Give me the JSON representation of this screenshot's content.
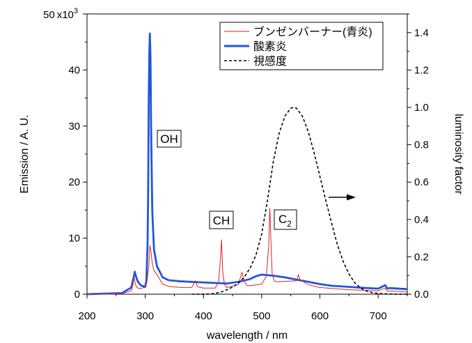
{
  "chart_data": {
    "type": "line",
    "xlabel": "wavelength / nm",
    "ylabel_left": "Emission / A. U.",
    "ylabel_right": "luminosity factor",
    "x_range": [
      200,
      750
    ],
    "y_left_range": [
      0,
      50000
    ],
    "y_right_range": [
      0,
      1.5
    ],
    "x_ticks": [
      200,
      300,
      400,
      500,
      600,
      700
    ],
    "y_left_ticks": [
      0,
      10,
      20,
      30,
      40,
      50
    ],
    "y_left_tick_labels": [
      "0",
      "10",
      "20",
      "30",
      "40",
      "50"
    ],
    "y_left_multiplier": "x10",
    "y_left_multiplier_exp": "3",
    "y_right_ticks": [
      "0.0",
      "0.2",
      "0.4",
      "0.6",
      "0.8",
      "1.0",
      "1.2",
      "1.4"
    ],
    "legend_position": "top-right",
    "series": [
      {
        "name": "ブンゼンバーナー(青炎)",
        "axis": "left",
        "style": "thin-solid",
        "color": "#dd2222",
        "x": [
          200,
          260,
          276,
          279,
          281,
          283,
          286,
          290,
          295,
          300,
          303,
          306,
          308,
          310,
          312,
          315,
          320,
          330,
          340,
          360,
          380,
          386,
          390,
          400,
          420,
          426,
          429,
          431,
          433,
          436,
          440,
          460,
          466,
          470,
          474,
          480,
          500,
          508,
          512,
          514,
          516,
          518,
          522,
          528,
          540,
          560,
          563,
          566,
          570,
          580,
          600,
          650,
          700,
          712,
          716,
          720,
          750
        ],
        "y": [
          0,
          100,
          600,
          1800,
          3100,
          1700,
          1200,
          1000,
          1100,
          1300,
          2200,
          5000,
          8700,
          7500,
          5500,
          4200,
          3500,
          1800,
          1400,
          1200,
          1200,
          2400,
          1300,
          1100,
          1100,
          2200,
          6000,
          9700,
          4000,
          1800,
          1200,
          1700,
          3900,
          2300,
          1600,
          1500,
          1800,
          3200,
          8500,
          15300,
          9000,
          3500,
          2300,
          2200,
          2300,
          2400,
          3500,
          2500,
          2300,
          1700,
          1200,
          800,
          600,
          1100,
          500,
          600,
          400
        ]
      },
      {
        "name": "酸素炎",
        "axis": "left",
        "style": "thick-solid",
        "color": "#2255dd",
        "x": [
          200,
          260,
          276,
          280,
          282,
          284,
          287,
          292,
          300,
          302,
          304,
          305,
          306,
          307,
          308,
          309,
          310,
          312,
          315,
          320,
          330,
          340,
          360,
          380,
          400,
          420,
          440,
          460,
          480,
          490,
          500,
          520,
          540,
          560,
          580,
          600,
          620,
          650,
          680,
          700,
          712,
          716,
          720,
          750
        ],
        "y": [
          0,
          200,
          1200,
          3000,
          4000,
          3200,
          2300,
          1600,
          1300,
          2500,
          9000,
          18000,
          35000,
          43000,
          46500,
          42000,
          30000,
          15000,
          8000,
          5000,
          3000,
          2500,
          2300,
          2200,
          2100,
          2000,
          1900,
          2200,
          2700,
          3200,
          3500,
          3300,
          3000,
          2600,
          2200,
          1800,
          1500,
          1300,
          1100,
          1000,
          1600,
          1000,
          1100,
          900
        ]
      },
      {
        "name": "視感度",
        "axis": "right",
        "style": "dashed",
        "color": "#000000",
        "x": [
          380,
          390,
          400,
          410,
          420,
          430,
          440,
          450,
          460,
          470,
          480,
          490,
          500,
          510,
          520,
          530,
          540,
          550,
          555,
          560,
          570,
          580,
          590,
          600,
          610,
          620,
          630,
          640,
          650,
          660,
          670,
          680,
          690,
          700,
          710,
          720,
          730,
          740,
          750
        ],
        "y": [
          0.0,
          0.0001,
          0.0004,
          0.0012,
          0.004,
          0.0116,
          0.023,
          0.038,
          0.06,
          0.091,
          0.139,
          0.208,
          0.323,
          0.503,
          0.71,
          0.862,
          0.954,
          0.995,
          1.0,
          0.995,
          0.952,
          0.87,
          0.757,
          0.631,
          0.503,
          0.381,
          0.265,
          0.175,
          0.107,
          0.061,
          0.032,
          0.017,
          0.0082,
          0.0041,
          0.0021,
          0.001,
          0.0005,
          0.0002,
          0.0001
        ]
      }
    ],
    "annotations": [
      {
        "id": "oh",
        "label": "OH",
        "subscript": ""
      },
      {
        "id": "ch",
        "label": "CH",
        "subscript": ""
      },
      {
        "id": "c2",
        "label": "C",
        "subscript": "2"
      }
    ]
  }
}
